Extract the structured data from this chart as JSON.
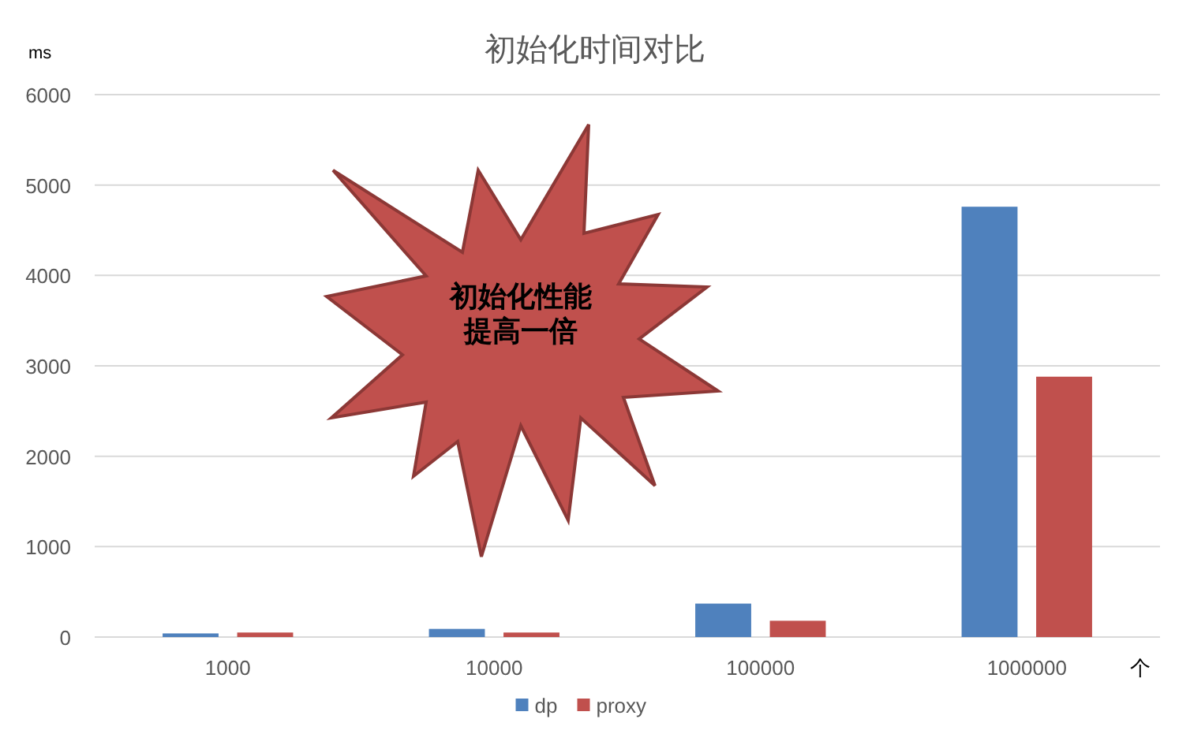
{
  "chart_data": {
    "type": "bar",
    "title": "初始化时间对比",
    "ylabel": "ms",
    "xlabel": "个",
    "categories": [
      "1000",
      "10000",
      "100000",
      "1000000"
    ],
    "series": [
      {
        "name": "dp",
        "color": "#4f81bd",
        "values": [
          40,
          90,
          370,
          4760
        ]
      },
      {
        "name": "proxy",
        "color": "#c0504d",
        "values": [
          50,
          50,
          180,
          2880
        ]
      }
    ],
    "ylim": [
      0,
      6000
    ],
    "yticks": [
      0,
      1000,
      2000,
      3000,
      4000,
      5000,
      6000
    ],
    "grid": "y",
    "legend": "bottom",
    "annotations": [
      "初始化性能",
      "提高一倍"
    ]
  }
}
